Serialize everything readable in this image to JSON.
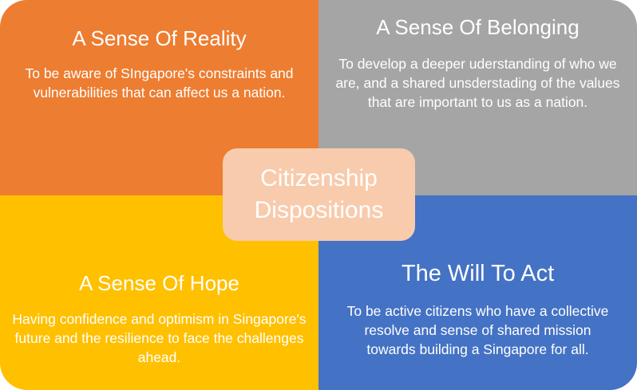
{
  "colors": {
    "reality": "#ED7D31",
    "belonging": "#A5A5A5",
    "hope": "#FFC000",
    "will": "#4472C4",
    "center": "#F8CBAD"
  },
  "quadrants": {
    "reality": {
      "title": "A Sense Of Reality",
      "body": "To be aware of SIngapore's constraints and vulnerabilities that can affect us a nation."
    },
    "belonging": {
      "title": "A Sense Of Belonging",
      "body": "To develop a deeper uderstanding of who we are, and a shared unsderstading of the values that are important to us as a nation."
    },
    "hope": {
      "title": "A Sense Of Hope",
      "body": "Having confidence and optimism in Singapore's future and the resilience to face the challenges ahead."
    },
    "will": {
      "title": "The Will To Act",
      "body": "To be active citizens who have a collective resolve and sense of shared mission towards building a Singapore for all."
    }
  },
  "center": {
    "line1": "Citizenship",
    "line2": "Dispositions"
  }
}
